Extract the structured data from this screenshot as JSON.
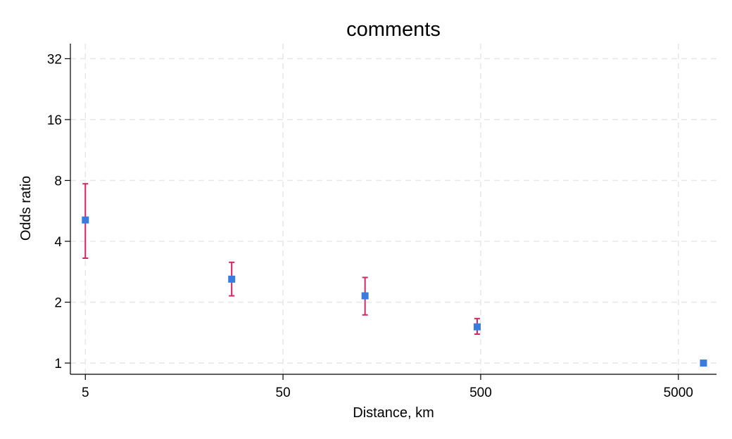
{
  "chart_data": {
    "type": "scatter",
    "title": "comments",
    "xlabel": "Distance, km",
    "ylabel": "Odds ratio",
    "x_scale": "log",
    "y_scale": "log2",
    "xlim": [
      4.2,
      7800
    ],
    "ylim": [
      0.88,
      38
    ],
    "x_ticks": [
      5,
      50,
      500,
      5000
    ],
    "x_tick_labels": [
      "5",
      "50",
      "500",
      "5000"
    ],
    "y_ticks": [
      1,
      2,
      4,
      8,
      16,
      32
    ],
    "y_tick_labels": [
      "1",
      "2",
      "4",
      "8",
      "16",
      "32"
    ],
    "grid": true,
    "legend": "none",
    "marker_color": "#3a7be0",
    "errorbar_color": "#d6245f",
    "points": [
      {
        "x": 5,
        "y": 5.1,
        "ci_low": 3.3,
        "ci_high": 7.7
      },
      {
        "x": 27.5,
        "y": 2.6,
        "ci_low": 2.15,
        "ci_high": 3.15
      },
      {
        "x": 130,
        "y": 2.15,
        "ci_low": 1.73,
        "ci_high": 2.65
      },
      {
        "x": 480,
        "y": 1.51,
        "ci_low": 1.39,
        "ci_high": 1.66
      },
      {
        "x": 6700,
        "y": 1.0,
        "ci_low": 0.985,
        "ci_high": 1.015
      }
    ]
  }
}
